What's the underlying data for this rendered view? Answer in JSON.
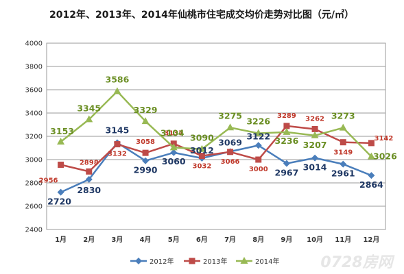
{
  "chart_data": {
    "type": "line",
    "title": "2012年、2013年、2014年仙桃市住宅成交均价走势对比图（元/㎡）",
    "categories": [
      "1月",
      "2月",
      "3月",
      "4月",
      "5月",
      "6月",
      "7月",
      "8月",
      "9月",
      "10月",
      "11月",
      "12月"
    ],
    "ylim": [
      2400,
      4000
    ],
    "yticks": [
      2400,
      2600,
      2800,
      3000,
      3200,
      3400,
      3600,
      3800,
      4000
    ],
    "grid": true,
    "legend_position": "bottom",
    "series": [
      {
        "name": "2012年",
        "color": "#4a7ebb",
        "marker": "diamond",
        "values": [
          2720,
          2830,
          3145,
          2990,
          3060,
          3012,
          3069,
          3122,
          2967,
          3014,
          2961,
          2864
        ]
      },
      {
        "name": "2013年",
        "color": "#be4b48",
        "marker": "square",
        "values": [
          2956,
          2898,
          3132,
          3058,
          3137,
          3032,
          3066,
          3000,
          3289,
          3262,
          3149,
          3142
        ]
      },
      {
        "name": "2014年",
        "color": "#98b954",
        "marker": "triangle",
        "values": [
          3153,
          3345,
          3586,
          3329,
          3104,
          3090,
          3275,
          3226,
          3236,
          3207,
          3273,
          3026
        ]
      }
    ],
    "label_colors": {
      "2012年": "#1f3864",
      "2013年": "#c0392b",
      "2014年": "#6a8e23"
    }
  },
  "watermark": "0728房网"
}
